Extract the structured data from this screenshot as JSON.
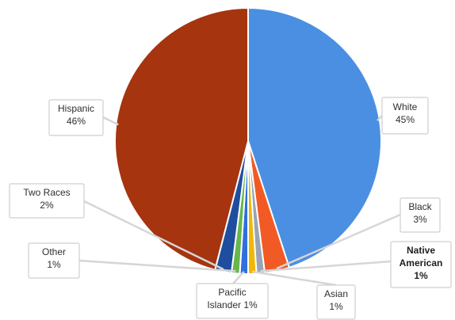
{
  "chart_data": {
    "type": "pie",
    "title": "",
    "slices": [
      {
        "name": "White",
        "value": 45,
        "label": "45%",
        "color": "#4b8fe2"
      },
      {
        "name": "Black",
        "value": 3,
        "label": "3%",
        "color": "#f15a24"
      },
      {
        "name": "Native American",
        "value": 1,
        "label": "1%",
        "color": "#9aa4b2"
      },
      {
        "name": "Asian",
        "value": 1,
        "label": "1%",
        "color": "#f2b705"
      },
      {
        "name": "Pacific Islander",
        "value": 1,
        "label": "1%",
        "color": "#2f6fe0"
      },
      {
        "name": "Other",
        "value": 1,
        "label": "1%",
        "color": "#66b84d"
      },
      {
        "name": "Two Races",
        "value": 2,
        "label": "2%",
        "color": "#1f4e9e"
      },
      {
        "name": "Hispanic",
        "value": 46,
        "label": "46%",
        "color": "#a5340f"
      }
    ],
    "labels": {
      "white": "White 45%",
      "black": "Black 3%",
      "native_american": "Native American 1%",
      "asian": "Asian 1%",
      "pacific_islander": "Pacific Islander 1%",
      "other": "Other 1%",
      "two_races": "Two Races 2%",
      "hispanic": "Hispanic 46%"
    },
    "legend": "none",
    "grid": "off"
  }
}
